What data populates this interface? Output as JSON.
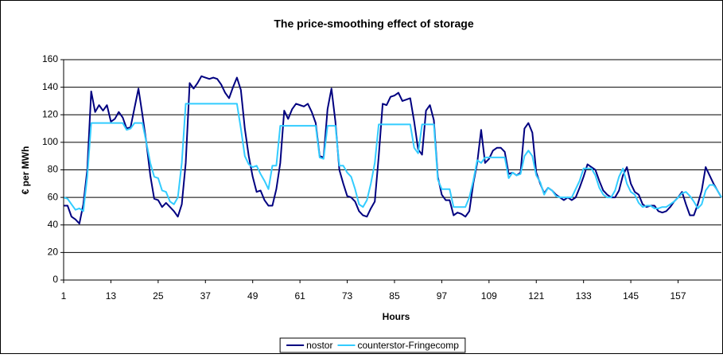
{
  "chart_data": {
    "type": "line",
    "title": "The price-smoothing effect of storage",
    "x_label": "Hours",
    "y_label": "€ per MWh",
    "x": [
      1,
      2,
      3,
      4,
      5,
      6,
      7,
      8,
      9,
      10,
      11,
      12,
      13,
      14,
      15,
      16,
      17,
      18,
      19,
      20,
      21,
      22,
      23,
      24,
      25,
      26,
      27,
      28,
      29,
      30,
      31,
      32,
      33,
      34,
      35,
      36,
      37,
      38,
      39,
      40,
      41,
      42,
      43,
      44,
      45,
      46,
      47,
      48,
      49,
      50,
      51,
      52,
      53,
      54,
      55,
      56,
      57,
      58,
      59,
      60,
      61,
      62,
      63,
      64,
      65,
      66,
      67,
      68,
      69,
      70,
      71,
      72,
      73,
      74,
      75,
      76,
      77,
      78,
      79,
      80,
      81,
      82,
      83,
      84,
      85,
      86,
      87,
      88,
      89,
      90,
      91,
      92,
      93,
      94,
      95,
      96,
      97,
      98,
      99,
      100,
      101,
      102,
      103,
      104,
      105,
      106,
      107,
      108,
      109,
      110,
      111,
      112,
      113,
      114,
      115,
      116,
      117,
      118,
      119,
      120,
      121,
      122,
      123,
      124,
      125,
      126,
      127,
      128,
      129,
      130,
      131,
      132,
      133,
      134,
      135,
      136,
      137,
      138,
      139,
      140,
      141,
      142,
      143,
      144,
      145,
      146,
      147,
      148,
      149,
      150,
      151,
      152,
      153,
      154,
      155,
      156,
      157,
      158,
      159,
      160,
      161,
      162,
      163,
      164,
      165,
      166,
      167,
      168
    ],
    "series": [
      {
        "name": "nostor",
        "color": "#000080",
        "values": [
          54,
          54,
          46,
          44,
          41,
          55,
          80,
          137,
          122,
          127,
          123,
          127,
          115,
          117,
          122,
          118,
          110,
          111,
          125,
          139,
          120,
          100,
          76,
          59,
          58,
          53,
          56,
          53,
          50,
          46,
          55,
          85,
          143,
          139,
          143,
          148,
          147,
          146,
          147,
          146,
          142,
          136,
          132,
          140,
          147,
          138,
          110,
          90,
          75,
          64,
          65,
          58,
          54,
          54,
          66,
          85,
          123,
          117,
          124,
          128,
          127,
          126,
          128,
          122,
          114,
          90,
          89,
          124,
          139,
          115,
          80,
          70,
          61,
          60,
          57,
          50,
          47,
          46,
          52,
          57,
          90,
          128,
          127,
          133,
          134,
          136,
          130,
          131,
          132,
          115,
          95,
          91,
          123,
          127,
          116,
          75,
          62,
          58,
          58,
          47,
          49,
          48,
          46,
          50,
          70,
          85,
          109,
          85,
          88,
          94,
          96,
          96,
          93,
          77,
          78,
          76,
          78,
          110,
          114,
          107,
          78,
          70,
          63,
          67,
          65,
          62,
          60,
          58,
          60,
          58,
          60,
          67,
          75,
          84,
          82,
          80,
          72,
          65,
          62,
          60,
          60,
          65,
          76,
          82,
          70,
          64,
          62,
          55,
          53,
          54,
          54,
          50,
          49,
          50,
          53,
          57,
          60,
          64,
          55,
          47,
          47,
          55,
          65,
          82,
          76,
          70,
          65,
          60
        ]
      },
      {
        "name": "counterstor-Fringecomp",
        "color": "#33ccff",
        "values": [
          60,
          59,
          55,
          51,
          52,
          50,
          75,
          114,
          114,
          114,
          114,
          114,
          114,
          114,
          114,
          114,
          109,
          110,
          114,
          114,
          114,
          100,
          85,
          75,
          74,
          65,
          64,
          57,
          55,
          60,
          85,
          128,
          128,
          128,
          128,
          128,
          128,
          128,
          128,
          128,
          128,
          128,
          128,
          128,
          128,
          110,
          90,
          84,
          82,
          83,
          77,
          72,
          66,
          83,
          83,
          112,
          112,
          112,
          112,
          112,
          112,
          112,
          112,
          112,
          112,
          89,
          88,
          112,
          112,
          112,
          83,
          83,
          78,
          75,
          66,
          55,
          53,
          58,
          70,
          85,
          113,
          113,
          113,
          113,
          113,
          113,
          113,
          113,
          113,
          96,
          92,
          113,
          113,
          113,
          113,
          73,
          66,
          66,
          66,
          53,
          53,
          53,
          53,
          60,
          72,
          87,
          85,
          89,
          89,
          89,
          89,
          89,
          89,
          74,
          78,
          76,
          77,
          90,
          94,
          90,
          76,
          71,
          62,
          67,
          65,
          61,
          60,
          60,
          60,
          60,
          66,
          72,
          81,
          81,
          81,
          76,
          67,
          62,
          60,
          60,
          65,
          75,
          81,
          70,
          64,
          62,
          56,
          53,
          54,
          54,
          52,
          52,
          53,
          53,
          55,
          57,
          60,
          63,
          64,
          61,
          57,
          52,
          55,
          65,
          69,
          69,
          65,
          60
        ]
      }
    ],
    "xlim": [
      1,
      168
    ],
    "xticks": [
      1,
      13,
      25,
      37,
      49,
      61,
      73,
      85,
      97,
      109,
      121,
      133,
      145,
      157
    ],
    "ylim": [
      0,
      160
    ],
    "yticks": [
      0,
      20,
      40,
      60,
      80,
      100,
      120,
      140,
      160
    ],
    "grid": true,
    "legend": "bottom"
  }
}
